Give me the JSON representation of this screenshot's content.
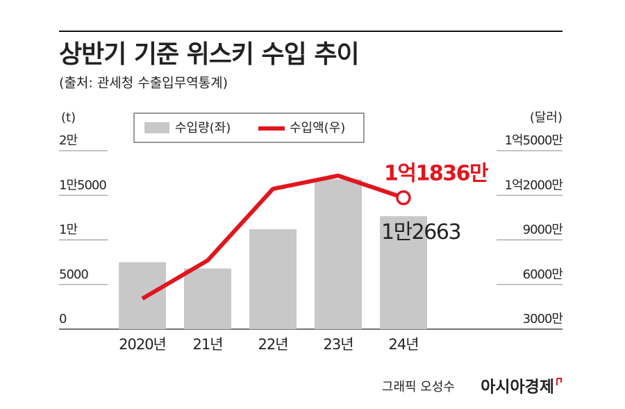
{
  "chart_data": {
    "type": "bar_line",
    "title": "상반기 기준 위스키 수입 추이",
    "subtitle": "(출처: 관세청 수출입무역통계)",
    "y_label": "(t)",
    "y2_label": "(달러)",
    "categories": [
      "2020년",
      "21년",
      "22년",
      "23년",
      "24년"
    ],
    "series": [
      {
        "name": "수입량(좌)",
        "type": "bar",
        "color": "#c8c8c8",
        "values": [
          7500,
          6800,
          11200,
          16800,
          12663
        ],
        "value_labels": [
          null,
          null,
          null,
          null,
          "1만2663"
        ]
      },
      {
        "name": "수입액(우)",
        "type": "line",
        "axis": "y2",
        "color": "#e0161e",
        "values": [
          50500000,
          76200000,
          124300000,
          133200000,
          118360000
        ],
        "value_labels": [
          null,
          null,
          null,
          null,
          "1억1836만"
        ]
      }
    ],
    "ylim": [
      0,
      20000
    ],
    "yticks": [
      0,
      5000,
      {
        "value": 10000,
        "label": "1만"
      },
      {
        "value": 15000,
        "label": "1만5000"
      },
      {
        "value": 20000,
        "label": "2만"
      }
    ],
    "y2lim": [
      30000000,
      150000000
    ],
    "y2ticks": [
      {
        "value": 30000000,
        "label": "3000만"
      },
      {
        "value": 60000000,
        "label": "6000만"
      },
      {
        "value": 90000000,
        "label": "9000만"
      },
      {
        "value": 120000000,
        "label": "1억2000만"
      },
      {
        "value": 150000000,
        "label": "1억5000만"
      }
    ],
    "grid": true,
    "credit": "그래픽 오성수",
    "brand": "아시아경제"
  }
}
